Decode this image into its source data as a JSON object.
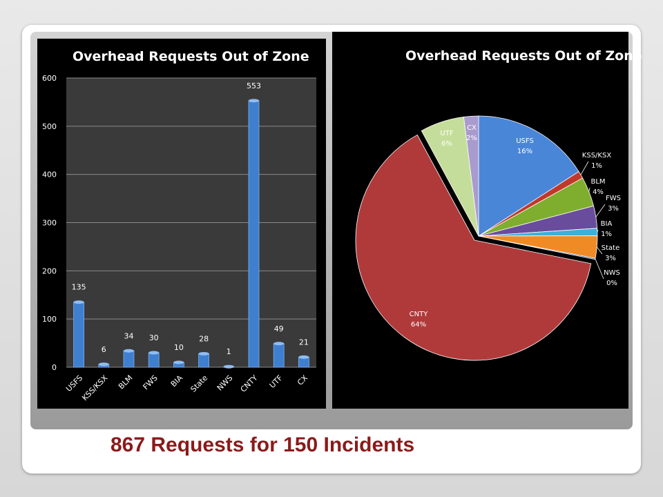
{
  "colors": {
    "bar_fill": "#3f7fd0",
    "plot_bg": "#3a3a3a",
    "caption": "#8b1a1a"
  },
  "footer": {
    "caption": "867 Requests for 150 Incidents"
  },
  "chart_data": [
    {
      "type": "bar",
      "title": "Overhead Requests Out of Zone",
      "categories": [
        "USFS",
        "KSS/KSX",
        "BLM",
        "FWS",
        "BIA",
        "State",
        "NWS",
        "CNTY",
        "UTF",
        "CX"
      ],
      "values": [
        135,
        6,
        34,
        30,
        10,
        28,
        1,
        553,
        49,
        21
      ],
      "data_labels": [
        "135",
        "6",
        "34",
        "30",
        "10",
        "28",
        "1",
        "553",
        "49",
        "21"
      ],
      "ylim": [
        0,
        600
      ],
      "yticks": [
        0,
        100,
        200,
        300,
        400,
        500,
        600
      ],
      "ytick_labels": [
        "0",
        "100",
        "200",
        "300",
        "400",
        "500",
        "600"
      ],
      "grid": true,
      "legend": "none"
    },
    {
      "type": "pie",
      "title": "Overhead Requests Out of Zone",
      "slices": [
        {
          "label": "USFS",
          "value": 16,
          "pct_label": "16%",
          "color": "#4a86d8"
        },
        {
          "label": "KSS/KSX",
          "value": 1,
          "pct_label": "1%",
          "color": "#c0392b"
        },
        {
          "label": "BLM",
          "value": 4,
          "pct_label": "4%",
          "color": "#7fae2e"
        },
        {
          "label": "FWS",
          "value": 3,
          "pct_label": "3%",
          "color": "#6a4c9c"
        },
        {
          "label": "BIA",
          "value": 1,
          "pct_label": "1%",
          "color": "#3cb1d8"
        },
        {
          "label": "State",
          "value": 3,
          "pct_label": "3%",
          "color": "#f08a24"
        },
        {
          "label": "NWS",
          "value": 0,
          "pct_label": "0%",
          "color": "#2a5aa0"
        },
        {
          "label": "CNTY",
          "value": 64,
          "pct_label": "64%",
          "color": "#b03a3a"
        },
        {
          "label": "UTF",
          "value": 6,
          "pct_label": "6%",
          "color": "#c5dd9a"
        },
        {
          "label": "CX",
          "value": 2,
          "pct_label": "2%",
          "color": "#a99bcd"
        }
      ],
      "legend": "none"
    }
  ]
}
